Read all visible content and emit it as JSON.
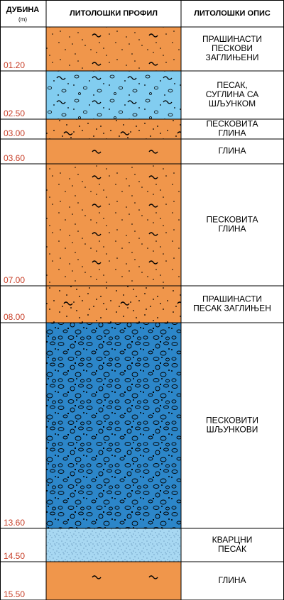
{
  "header": {
    "depth": "ДУБИНА",
    "unit": "(m)",
    "profile": "ЛИТОЛОШКИ ПРОФИЛ",
    "description": "ЛИТОЛОШКИ ОПИС"
  },
  "layers": [
    {
      "depth": "01.20",
      "description": [
        "ПРАШИНАСТИ",
        "ПЕСКОВИ",
        "ЗАГЛИЊЕНИ"
      ]
    },
    {
      "depth": "02.50",
      "description": [
        "ПЕСАК,",
        "СУГЛИНА СА",
        "ШЉУНКОМ"
      ]
    },
    {
      "depth": "03.00",
      "description": [
        "ПЕСКОВИТА",
        "ГЛИНА"
      ]
    },
    {
      "depth": "03.60",
      "description": [
        "ГЛИНА"
      ]
    },
    {
      "depth": "07.00",
      "description": [
        "ПЕСКОВИТА",
        "ГЛИНА"
      ]
    },
    {
      "depth": "08.00",
      "description": [
        "ПРАШИНАСТИ",
        "ПЕСАК ЗАГЛИЊЕН"
      ]
    },
    {
      "depth": "13.60",
      "description": [
        "ПЕСКОВИТИ",
        "ШЉУНКОВИ"
      ]
    },
    {
      "depth": "14.50",
      "description": [
        "КВАРЦНИ",
        "ПЕСАК"
      ]
    },
    {
      "depth": "15.50",
      "description": [
        "ГЛИНА"
      ]
    }
  ]
}
